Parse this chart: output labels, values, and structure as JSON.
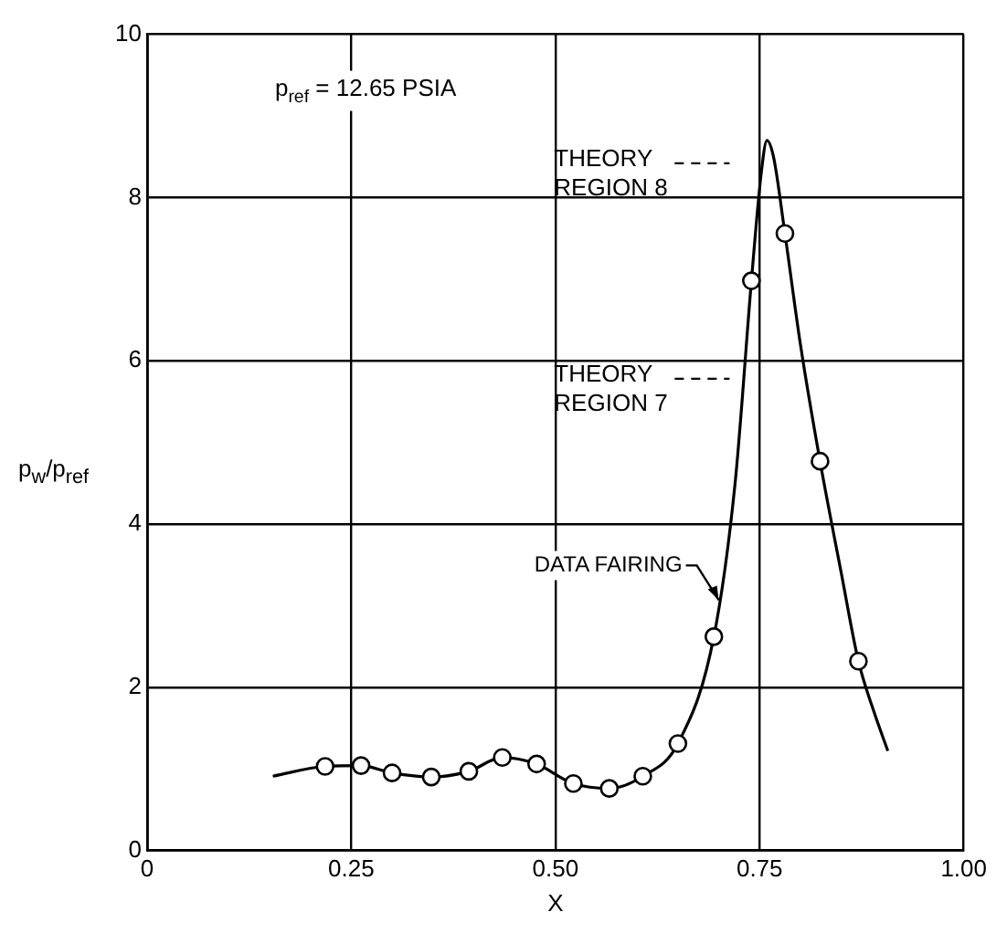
{
  "chart_data": {
    "type": "scatter",
    "xlabel": "X",
    "ylabel": "p$_{w}$/p$_{ref}$",
    "xlim": [
      0,
      1
    ],
    "xticks": [
      0,
      0.25,
      {
        "value": 0.5,
        "label": "0.50"
      },
      0.75,
      {
        "value": 1,
        "label": "1.00"
      }
    ],
    "ylim": [
      0,
      10
    ],
    "yticks": [
      0,
      2,
      4,
      6,
      8,
      10
    ],
    "grid": true,
    "series": [
      {
        "type": "line",
        "color": "#000000",
        "marker": "none",
        "x": [
          0.154,
          0.218,
          0.262,
          0.3,
          0.348,
          0.394,
          0.435,
          0.455,
          0.477,
          0.522,
          0.566,
          0.607,
          0.65,
          0.694,
          0.72,
          0.74,
          0.752,
          0.759,
          0.767,
          0.781,
          0.8,
          0.824,
          0.85,
          0.871,
          0.89,
          0.907
        ],
        "values": [
          0.91,
          1.03,
          1.04,
          0.95,
          0.9,
          0.97,
          1.14,
          1.12,
          1.06,
          0.82,
          0.76,
          0.91,
          1.31,
          2.62,
          4.5,
          6.98,
          8.3,
          8.7,
          8.5,
          7.56,
          6.2,
          4.77,
          3.4,
          2.32,
          1.7,
          1.22
        ]
      },
      {
        "color": "#000000",
        "marker": "circle",
        "x": [
          0.218,
          0.262,
          0.3,
          0.348,
          0.394,
          0.435,
          0.477,
          0.522,
          0.566,
          0.607,
          0.65,
          0.694,
          0.74,
          0.781,
          0.824,
          0.871
        ],
        "values": [
          1.03,
          1.04,
          0.95,
          0.9,
          0.97,
          1.14,
          1.06,
          0.82,
          0.76,
          0.91,
          1.31,
          2.62,
          6.98,
          7.56,
          4.77,
          2.32
        ]
      }
    ],
    "annotations": [
      "p$_{ref}$ = 12.65 PSIA",
      "THEORY\nREGION 8",
      "THEORY\nREGION 7",
      {
        "text": "DATA FAIRING",
        "x": 0.7,
        "y": 3.0
      }
    ]
  }
}
